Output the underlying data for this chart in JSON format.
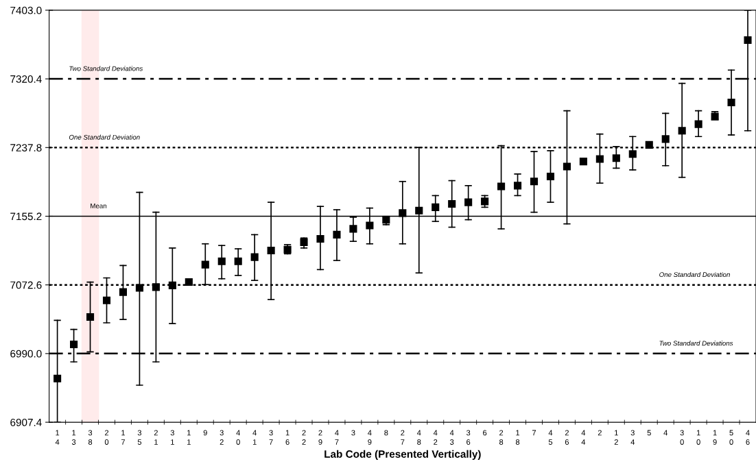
{
  "chart_data": {
    "type": "scatter",
    "xlabel": "Lab Code (Presented Vertically)",
    "categories": [
      "14",
      "13",
      "38",
      "20",
      "17",
      "35",
      "21",
      "31",
      "11",
      "9",
      "32",
      "40",
      "41",
      "37",
      "16",
      "22",
      "29",
      "47",
      "3",
      "49",
      "8",
      "27",
      "48",
      "42",
      "43",
      "36",
      "6",
      "28",
      "18",
      "7",
      "45",
      "26",
      "44",
      "2",
      "12",
      "34",
      "5",
      "4",
      "30",
      "10",
      "19",
      "50",
      "46"
    ],
    "series": [
      {
        "color": "#000000",
        "values": [
          6960,
          7001,
          7034,
          7054,
          7064,
          7069,
          7070,
          7072,
          7076,
          7097,
          7101,
          7101,
          7106,
          7114,
          7115,
          7124,
          7128,
          7133,
          7140,
          7144,
          7151,
          7159,
          7162,
          7166,
          7170,
          7172,
          7173,
          7191,
          7192,
          7197,
          7203,
          7215,
          7221,
          7224,
          7225,
          7230,
          7241,
          7248,
          7258,
          7266,
          7275,
          7292,
          7367
        ],
        "errors": [
          [
            6907.4,
            7030
          ],
          [
            6980,
            7019
          ],
          [
            6992,
            7076
          ],
          [
            7027,
            7081
          ],
          [
            7031,
            7096
          ],
          [
            6952,
            7184
          ],
          [
            6980,
            7160
          ],
          [
            7026,
            7117
          ],
          null,
          [
            7073,
            7122
          ],
          [
            7080,
            7120
          ],
          [
            7084,
            7116
          ],
          [
            7078,
            7133
          ],
          [
            7055,
            7172
          ],
          [
            7110,
            7121
          ],
          [
            7117,
            7129
          ],
          [
            7091,
            7167
          ],
          [
            7102,
            7163
          ],
          [
            7125,
            7154
          ],
          [
            7122,
            7165
          ],
          [
            7145,
            7155
          ],
          [
            7122,
            7197
          ],
          [
            7087,
            7238
          ],
          [
            7149,
            7180
          ],
          [
            7142,
            7198
          ],
          [
            7151,
            7192
          ],
          [
            7166,
            7180
          ],
          [
            7140,
            7240
          ],
          [
            7180,
            7206
          ],
          [
            7160,
            7233
          ],
          [
            7172,
            7234
          ],
          [
            7146,
            7282
          ],
          null,
          [
            7195,
            7254
          ],
          [
            7213,
            7239
          ],
          [
            7211,
            7251
          ],
          null,
          [
            7216,
            7279
          ],
          [
            7202,
            7315
          ],
          [
            7251,
            7282
          ],
          [
            7272,
            7281
          ],
          [
            7253,
            7331
          ],
          [
            7258,
            7403.0
          ]
        ]
      }
    ],
    "marker": "square",
    "ylim": [
      6907.4,
      7403.0
    ],
    "yticks": [
      {
        "value": 6907.4,
        "label": "6907.4"
      },
      {
        "value": 6990.0,
        "label": "6990.0"
      },
      {
        "value": 7072.6,
        "label": "7072.6"
      },
      {
        "value": 7155.2,
        "label": "7155.2"
      },
      {
        "value": 7237.8,
        "label": "7237.8"
      },
      {
        "value": 7320.4,
        "label": "7320.4"
      },
      {
        "value": 7403.0,
        "label": "7403.0"
      }
    ],
    "ref_lines": [
      {
        "axis": "y",
        "value": 7320.4,
        "label": "Two Standard Deviations",
        "line_style": "dashdot",
        "color": "#000000"
      },
      {
        "axis": "y",
        "value": 7237.8,
        "label": "One Standard Deviation",
        "line_style": "dotted",
        "color": "#000000"
      },
      {
        "axis": "y",
        "value": 7155.2,
        "label": "Mean",
        "line_style": "solid",
        "color": "#000000"
      },
      {
        "axis": "y",
        "value": 7072.6,
        "label": "One Standard Deviation",
        "line_style": "dotted",
        "color": "#000000"
      },
      {
        "axis": "y",
        "value": 6990.0,
        "label": "Two Standard Deviations",
        "line_style": "dashdot",
        "color": "#000000"
      }
    ],
    "bands": [
      {
        "axis": "x",
        "from": "38",
        "to": "38",
        "color": "#ff0000"
      }
    ],
    "grid": false,
    "legend": false
  }
}
